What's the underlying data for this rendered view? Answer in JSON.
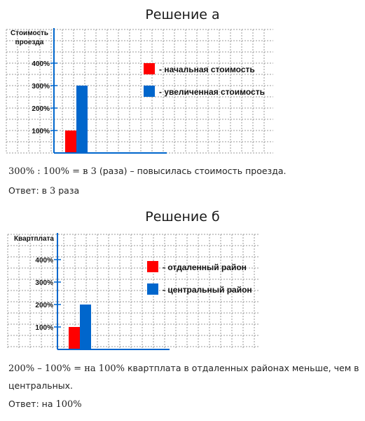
{
  "sections": [
    {
      "title": "Решение а",
      "chart": {
        "type": "bar",
        "ylabel_lines": [
          "Стоимость",
          "проезда"
        ],
        "yticks": [
          "100%",
          "200%",
          "300%",
          "400%"
        ],
        "ylim": [
          0,
          500
        ],
        "series": [
          {
            "name": "- начальная стоимость",
            "value": 100,
            "color": "#ff0000"
          },
          {
            "name": "- увеличенная стоимость",
            "value": 300,
            "color": "#0066cc"
          }
        ],
        "legend_position": "top-right",
        "grid": true
      },
      "explanation": {
        "math": "300% : 100% = в 3",
        "text": " (раза) – повысилась стоимость проезда."
      },
      "answer": {
        "prefix": "Ответ: в ",
        "math": "3",
        "suffix": " раза"
      }
    },
    {
      "title": "Решение б",
      "chart": {
        "type": "bar",
        "ylabel_lines": [
          "Квартплата"
        ],
        "yticks": [
          "100%",
          "200%",
          "300%",
          "400%"
        ],
        "ylim": [
          0,
          500
        ],
        "series": [
          {
            "name": "- отдаленный район",
            "value": 100,
            "color": "#ff0000"
          },
          {
            "name": "- центральный район",
            "value": 200,
            "color": "#0066cc"
          }
        ],
        "legend_position": "top-right",
        "grid": true
      },
      "explanation": {
        "math": "200% – 100% = на 100%",
        "text": " квартплата в отдаленных районах меньше, чем в",
        "text2": "центральных."
      },
      "answer": {
        "prefix": "Ответ: на ",
        "math": "100%",
        "suffix": ""
      }
    }
  ],
  "chart_data": [
    {
      "type": "bar",
      "title": "Решение а",
      "ylabel": "Стоимость проезда",
      "ylim": [
        0,
        500
      ],
      "yticks": [
        "100%",
        "200%",
        "300%",
        "400%"
      ],
      "series": [
        {
          "name": "- начальная стоимость",
          "values": [
            100
          ]
        },
        {
          "name": "- увеличенная стоимость",
          "values": [
            300
          ]
        }
      ]
    },
    {
      "type": "bar",
      "title": "Решение б",
      "ylabel": "Квартплата",
      "ylim": [
        0,
        500
      ],
      "yticks": [
        "100%",
        "200%",
        "300%",
        "400%"
      ],
      "series": [
        {
          "name": "- отдаленный район",
          "values": [
            100
          ]
        },
        {
          "name": "- центральный район",
          "values": [
            200
          ]
        }
      ]
    }
  ]
}
